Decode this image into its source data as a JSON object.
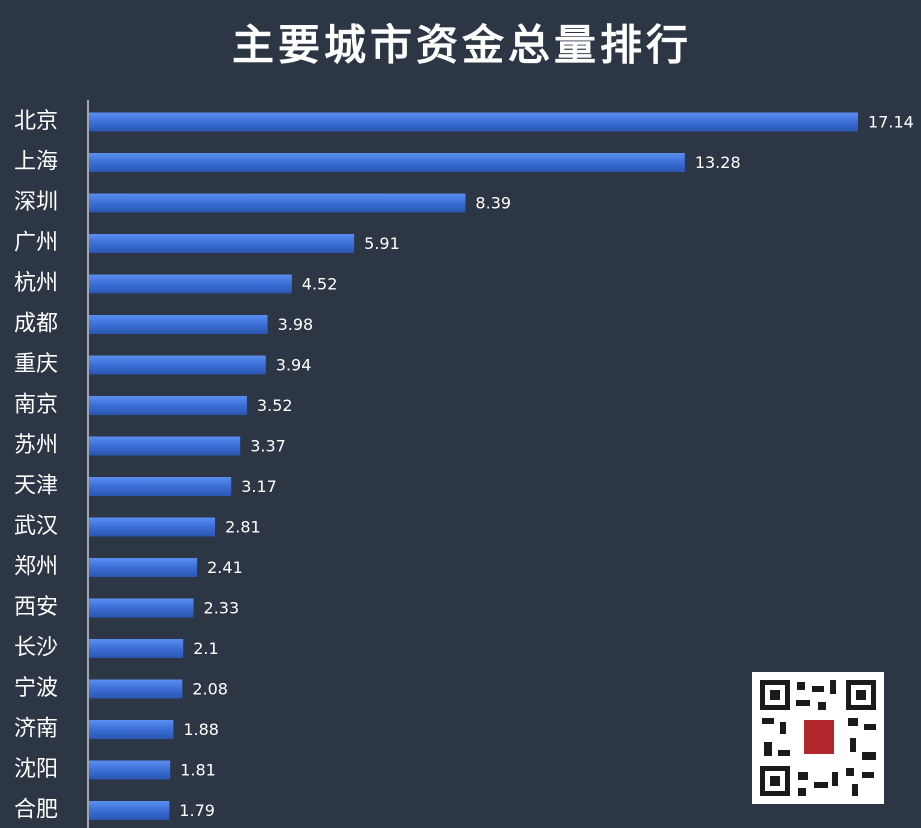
{
  "chart_data": {
    "type": "bar",
    "orientation": "horizontal",
    "title": "主要城市资金总量排行",
    "categories": [
      "北京",
      "上海",
      "深圳",
      "广州",
      "杭州",
      "成都",
      "重庆",
      "南京",
      "苏州",
      "天津",
      "武汉",
      "郑州",
      "西安",
      "长沙",
      "宁波",
      "济南",
      "沈阳",
      "合肥"
    ],
    "values": [
      17.14,
      13.28,
      8.39,
      5.91,
      4.52,
      3.98,
      3.94,
      3.52,
      3.37,
      3.17,
      2.81,
      2.41,
      2.33,
      2.1,
      2.08,
      1.88,
      1.81,
      1.79
    ],
    "color": "#3b6fd6"
  }
}
